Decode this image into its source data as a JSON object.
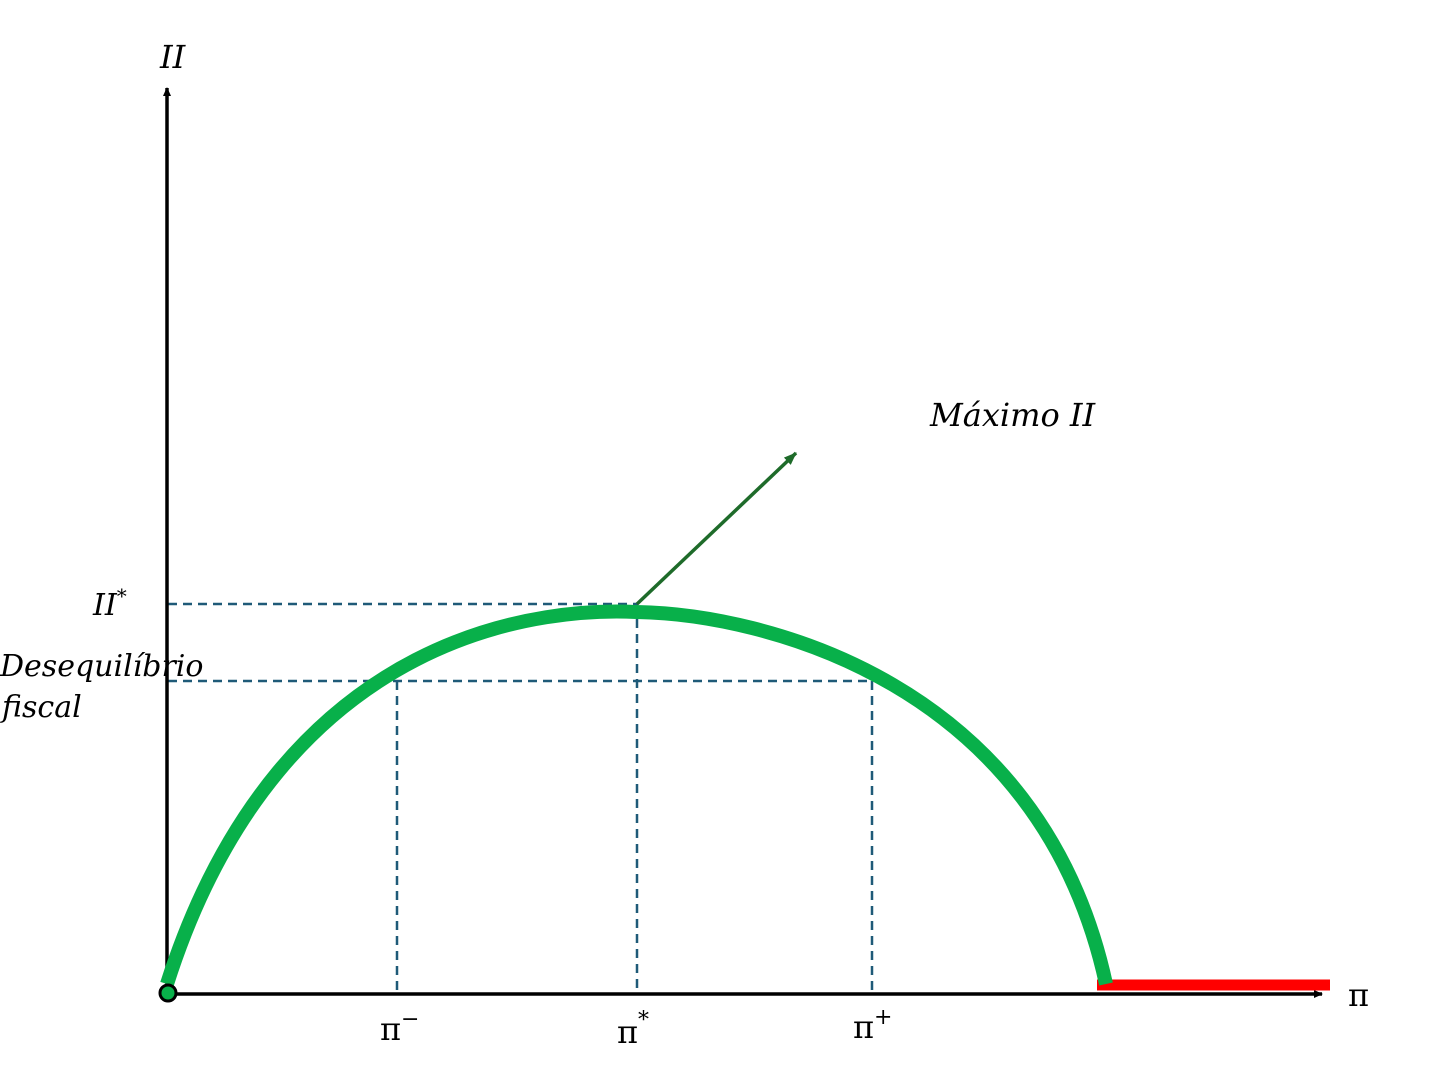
{
  "axes": {
    "y_label": "II",
    "x_label": "π"
  },
  "y_ticks": {
    "max_label": "II",
    "max_sup": "*",
    "deficit_line1": "Desequilíbrio",
    "deficit_line2": "fiscal"
  },
  "x_ticks": {
    "low": "π",
    "low_sup": "−",
    "star": "π",
    "star_sup": "*",
    "high": "π",
    "high_sup": "+"
  },
  "annotation": {
    "text": "Máximo II"
  },
  "colors": {
    "curve": "#08b04a",
    "guides": "#1f5a78",
    "arrow": "#1e6b2a",
    "hyperinflation": "#ff0000",
    "axes": "#000000"
  }
}
